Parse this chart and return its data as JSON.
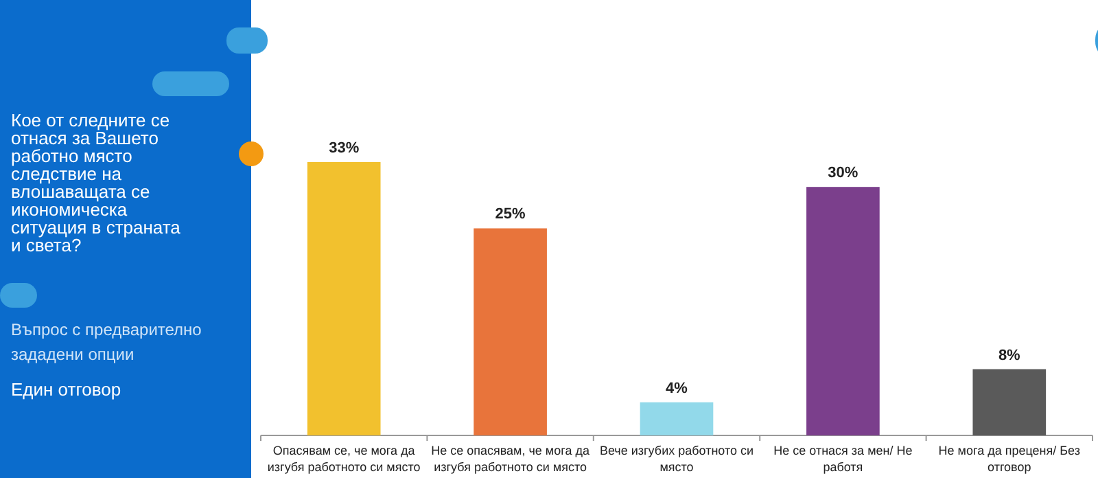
{
  "chart_data": {
    "type": "bar",
    "title": "Кое от следните се отнася за Вашето работно място следствие на влошаващата се икономическа ситуация в страната и света?",
    "subtitle": "Въпрос с предварително зададени опции",
    "annotations": [
      "Един отговор"
    ],
    "categories": [
      "Опасявам се, че мога да изгубя работното си място",
      "Не се опасявам, че мога да изгубя работното си място",
      "Вече изгубих работното си място",
      "Не се отнася за мен/ Не работя",
      "Не мога да преценя/ Без отговор"
    ],
    "values": [
      33,
      25,
      4,
      30,
      8
    ],
    "colors": [
      "#f2c12e",
      "#e8743b",
      "#92d9ea",
      "#7b3f8c",
      "#5a5a5a"
    ],
    "value_labels": [
      "33%",
      "25%",
      "4%",
      "30%",
      "8%"
    ],
    "grid": false
  }
}
